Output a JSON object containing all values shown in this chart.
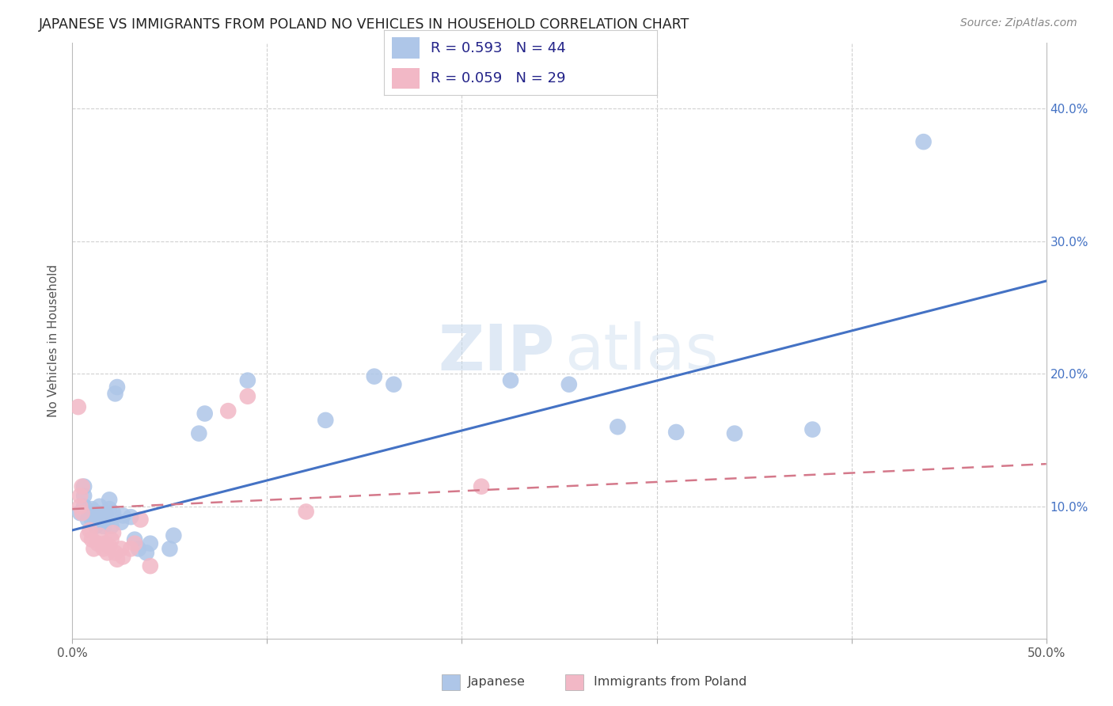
{
  "title": "JAPANESE VS IMMIGRANTS FROM POLAND NO VEHICLES IN HOUSEHOLD CORRELATION CHART",
  "source": "Source: ZipAtlas.com",
  "ylabel": "No Vehicles in Household",
  "xlim": [
    0.0,
    0.5
  ],
  "ylim": [
    0.0,
    0.45
  ],
  "xticks": [
    0.0,
    0.1,
    0.2,
    0.3,
    0.4,
    0.5
  ],
  "xticklabels": [
    "0.0%",
    "",
    "",
    "",
    "",
    "50.0%"
  ],
  "yticks": [
    0.0,
    0.1,
    0.2,
    0.3,
    0.4
  ],
  "right_yticks": [
    0.1,
    0.2,
    0.3,
    0.4
  ],
  "right_yticklabels": [
    "10.0%",
    "20.0%",
    "30.0%",
    "40.0%"
  ],
  "background_color": "#ffffff",
  "grid_color": "#d0d0d0",
  "watermark_zip": "ZIP",
  "watermark_atlas": "atlas",
  "legend_r1": "R = 0.593",
  "legend_n1": "N = 44",
  "legend_r2": "R = 0.059",
  "legend_n2": "N = 29",
  "japanese_color": "#aec6e8",
  "poland_color": "#f2b8c6",
  "japanese_line_color": "#4472c4",
  "poland_line_color": "#d4788a",
  "japanese_scatter": [
    [
      0.004,
      0.095
    ],
    [
      0.006,
      0.1
    ],
    [
      0.006,
      0.108
    ],
    [
      0.006,
      0.115
    ],
    [
      0.008,
      0.09
    ],
    [
      0.009,
      0.095
    ],
    [
      0.01,
      0.09
    ],
    [
      0.01,
      0.098
    ],
    [
      0.012,
      0.085
    ],
    [
      0.012,
      0.09
    ],
    [
      0.013,
      0.095
    ],
    [
      0.014,
      0.1
    ],
    [
      0.016,
      0.085
    ],
    [
      0.016,
      0.09
    ],
    [
      0.017,
      0.095
    ],
    [
      0.018,
      0.09
    ],
    [
      0.019,
      0.098
    ],
    [
      0.019,
      0.105
    ],
    [
      0.02,
      0.085
    ],
    [
      0.021,
      0.095
    ],
    [
      0.022,
      0.185
    ],
    [
      0.023,
      0.19
    ],
    [
      0.025,
      0.088
    ],
    [
      0.026,
      0.093
    ],
    [
      0.03,
      0.092
    ],
    [
      0.032,
      0.075
    ],
    [
      0.034,
      0.068
    ],
    [
      0.038,
      0.065
    ],
    [
      0.04,
      0.072
    ],
    [
      0.05,
      0.068
    ],
    [
      0.052,
      0.078
    ],
    [
      0.065,
      0.155
    ],
    [
      0.068,
      0.17
    ],
    [
      0.09,
      0.195
    ],
    [
      0.13,
      0.165
    ],
    [
      0.155,
      0.198
    ],
    [
      0.165,
      0.192
    ],
    [
      0.225,
      0.195
    ],
    [
      0.255,
      0.192
    ],
    [
      0.28,
      0.16
    ],
    [
      0.31,
      0.156
    ],
    [
      0.34,
      0.155
    ],
    [
      0.437,
      0.375
    ],
    [
      0.38,
      0.158
    ]
  ],
  "poland_scatter": [
    [
      0.003,
      0.175
    ],
    [
      0.004,
      0.1
    ],
    [
      0.004,
      0.108
    ],
    [
      0.005,
      0.095
    ],
    [
      0.005,
      0.115
    ],
    [
      0.008,
      0.078
    ],
    [
      0.009,
      0.082
    ],
    [
      0.01,
      0.075
    ],
    [
      0.011,
      0.068
    ],
    [
      0.013,
      0.072
    ],
    [
      0.014,
      0.078
    ],
    [
      0.016,
      0.068
    ],
    [
      0.017,
      0.072
    ],
    [
      0.018,
      0.065
    ],
    [
      0.019,
      0.07
    ],
    [
      0.02,
      0.075
    ],
    [
      0.021,
      0.08
    ],
    [
      0.022,
      0.065
    ],
    [
      0.023,
      0.06
    ],
    [
      0.025,
      0.068
    ],
    [
      0.026,
      0.062
    ],
    [
      0.03,
      0.068
    ],
    [
      0.032,
      0.072
    ],
    [
      0.035,
      0.09
    ],
    [
      0.04,
      0.055
    ],
    [
      0.08,
      0.172
    ],
    [
      0.09,
      0.183
    ],
    [
      0.12,
      0.096
    ],
    [
      0.21,
      0.115
    ]
  ],
  "japanese_line": [
    [
      0.0,
      0.082
    ],
    [
      0.5,
      0.27
    ]
  ],
  "poland_line": [
    [
      0.0,
      0.098
    ],
    [
      0.5,
      0.132
    ]
  ],
  "bottom_legend_japanese": "Japanese",
  "bottom_legend_poland": "Immigrants from Poland"
}
